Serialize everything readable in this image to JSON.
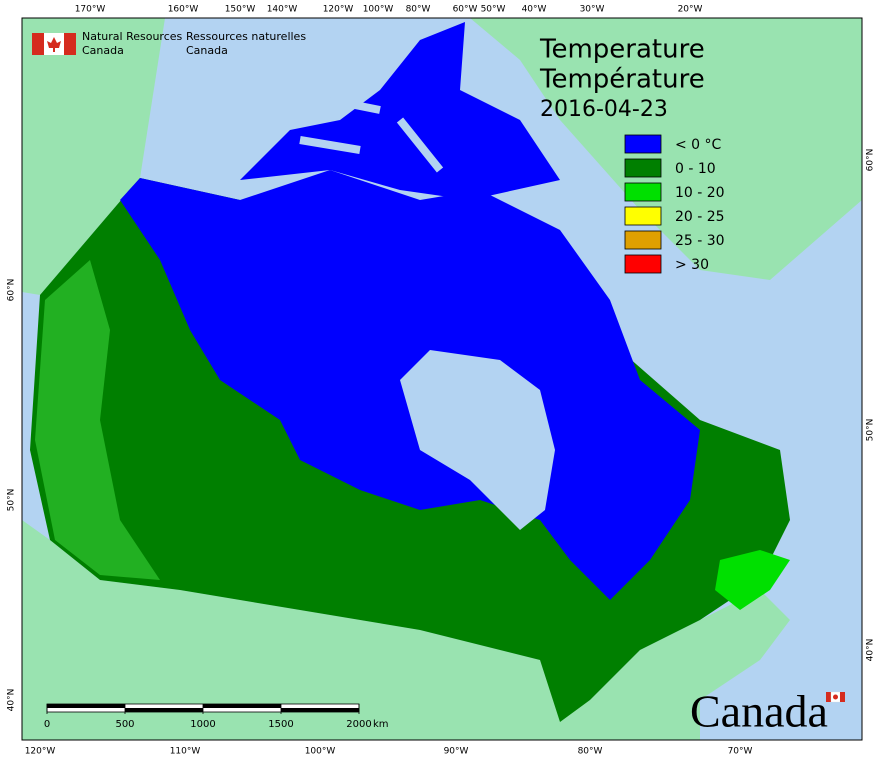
{
  "agency": {
    "en": [
      "Natural Resources",
      "Canada"
    ],
    "fr": [
      "Ressources naturelles",
      "Canada"
    ]
  },
  "title": [
    "Temperature",
    "Température"
  ],
  "date": "2016-04-23",
  "legend": [
    {
      "label": "< 0 °C",
      "color": "#0000ff"
    },
    {
      "label": "0 - 10",
      "color": "#007f00"
    },
    {
      "label": "10 - 20",
      "color": "#00e000"
    },
    {
      "label": "20 - 25",
      "color": "#ffff00"
    },
    {
      "label": "25 - 30",
      "color": "#dfa000"
    },
    {
      "label": "> 30",
      "color": "#ff0000"
    }
  ],
  "graticule": {
    "top": [
      "170°W",
      "160°W",
      "150°W",
      "140°W",
      "120°W",
      "100°W",
      "80°W",
      "60°W",
      "50°W",
      "40°W",
      "30°W",
      "20°W"
    ],
    "bottom": [
      "120°W",
      "110°W",
      "100°W",
      "90°W",
      "80°W",
      "70°W"
    ],
    "left": [
      "60°N",
      "50°N",
      "40°N"
    ],
    "right": [
      "60°N",
      "50°N",
      "40°N"
    ]
  },
  "scale_bar": {
    "ticks": [
      0,
      500,
      1000,
      1500,
      2000
    ],
    "unit": "km"
  },
  "wordmark": "Canada"
}
